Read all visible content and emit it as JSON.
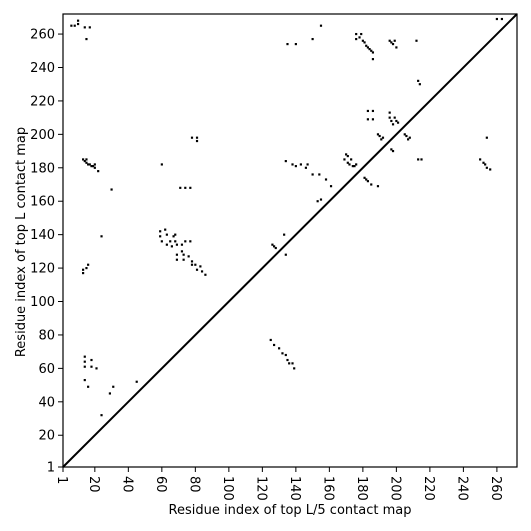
{
  "chart_data": {
    "type": "scatter",
    "xlabel": "Residue index of top L/5 contact map",
    "ylabel": "Residue index of top L contact map",
    "xlim": [
      1,
      272
    ],
    "ylim": [
      1,
      272
    ],
    "x_ticks": [
      1,
      20,
      40,
      60,
      80,
      100,
      120,
      140,
      160,
      180,
      200,
      220,
      240,
      260
    ],
    "y_ticks": [
      1,
      20,
      40,
      60,
      80,
      100,
      120,
      140,
      160,
      180,
      200,
      220,
      240,
      260
    ],
    "x_tick_rotation": "vertical",
    "grid": false,
    "legend": "none",
    "diagonal_line": {
      "from": [
        1,
        1
      ],
      "to": [
        272,
        272
      ],
      "color": "#000000"
    },
    "marker_color": "#000000",
    "series": [
      {
        "role": "upper-left (top L contacts)",
        "points": [
          [
            6,
            265
          ],
          [
            8,
            265
          ],
          [
            10,
            266
          ],
          [
            10,
            268
          ],
          [
            14,
            264
          ],
          [
            15,
            257
          ],
          [
            17,
            264
          ],
          [
            13,
            185
          ],
          [
            14,
            184
          ],
          [
            15,
            185
          ],
          [
            15,
            183
          ],
          [
            16,
            182
          ],
          [
            17,
            182
          ],
          [
            18,
            181
          ],
          [
            19,
            181
          ],
          [
            20,
            180
          ],
          [
            20,
            182
          ],
          [
            22,
            178
          ],
          [
            30,
            167
          ],
          [
            13,
            119
          ],
          [
            13,
            117
          ],
          [
            15,
            120
          ],
          [
            16,
            122
          ],
          [
            24,
            139
          ],
          [
            14,
            67
          ],
          [
            14,
            64
          ],
          [
            14,
            61
          ],
          [
            18,
            65
          ],
          [
            18,
            61
          ],
          [
            21,
            60
          ],
          [
            14,
            53
          ],
          [
            16,
            49
          ],
          [
            24,
            32
          ],
          [
            29,
            45
          ],
          [
            31,
            49
          ],
          [
            45,
            52
          ],
          [
            59,
            142
          ],
          [
            59,
            139
          ],
          [
            60,
            136
          ],
          [
            62,
            143
          ],
          [
            63,
            140
          ],
          [
            63,
            134
          ],
          [
            65,
            136
          ],
          [
            66,
            133
          ],
          [
            67,
            139
          ],
          [
            68,
            140
          ],
          [
            68,
            136
          ],
          [
            69,
            134
          ],
          [
            72,
            134
          ],
          [
            72,
            130
          ],
          [
            69,
            128
          ],
          [
            69,
            125
          ],
          [
            73,
            128
          ],
          [
            73,
            125
          ],
          [
            76,
            127
          ],
          [
            74,
            136
          ],
          [
            77,
            136
          ],
          [
            78,
            124
          ],
          [
            78,
            122
          ],
          [
            80,
            122
          ],
          [
            81,
            119
          ],
          [
            83,
            121
          ],
          [
            84,
            118
          ],
          [
            86,
            116
          ],
          [
            60,
            182
          ],
          [
            71,
            168
          ],
          [
            74,
            168
          ],
          [
            77,
            168
          ],
          [
            78,
            198
          ],
          [
            81,
            198
          ],
          [
            81,
            196
          ],
          [
            126,
            134
          ],
          [
            127,
            133
          ],
          [
            128,
            132
          ],
          [
            125,
            77
          ],
          [
            127,
            74
          ],
          [
            130,
            72
          ],
          [
            132,
            69
          ],
          [
            134,
            68
          ],
          [
            135,
            65
          ],
          [
            136,
            63
          ],
          [
            138,
            63
          ],
          [
            139,
            60
          ],
          [
            133,
            140
          ],
          [
            134,
            128
          ],
          [
            134,
            184
          ],
          [
            138,
            182
          ],
          [
            140,
            181
          ],
          [
            143,
            182
          ],
          [
            146,
            180
          ],
          [
            147,
            182
          ],
          [
            150,
            176
          ],
          [
            154,
            176
          ],
          [
            153,
            160
          ],
          [
            155,
            161
          ],
          [
            158,
            173
          ],
          [
            161,
            169
          ],
          [
            135,
            254
          ],
          [
            140,
            254
          ],
          [
            150,
            257
          ],
          [
            155,
            265
          ],
          [
            169,
            185
          ],
          [
            170,
            188
          ],
          [
            171,
            187
          ],
          [
            171,
            183
          ],
          [
            172,
            182
          ],
          [
            173,
            185
          ],
          [
            174,
            181
          ],
          [
            175,
            181
          ],
          [
            176,
            182
          ],
          [
            176,
            257
          ],
          [
            176,
            260
          ],
          [
            178,
            258
          ],
          [
            179,
            260
          ],
          [
            180,
            256
          ],
          [
            181,
            255
          ],
          [
            182,
            253
          ],
          [
            183,
            252
          ],
          [
            184,
            251
          ],
          [
            185,
            250
          ],
          [
            186,
            249
          ],
          [
            186,
            245
          ],
          [
            181,
            174
          ],
          [
            182,
            173
          ],
          [
            183,
            172
          ],
          [
            185,
            170
          ],
          [
            189,
            169
          ],
          [
            183,
            214
          ],
          [
            183,
            209
          ],
          [
            186,
            214
          ],
          [
            186,
            209
          ],
          [
            189,
            200
          ],
          [
            190,
            199
          ],
          [
            191,
            197
          ],
          [
            192,
            198
          ],
          [
            196,
            213
          ],
          [
            196,
            210
          ],
          [
            197,
            208
          ],
          [
            198,
            206
          ],
          [
            199,
            210
          ],
          [
            200,
            208
          ],
          [
            201,
            207
          ],
          [
            197,
            191
          ],
          [
            198,
            190
          ],
          [
            196,
            256
          ],
          [
            197,
            255
          ],
          [
            198,
            254
          ],
          [
            199,
            256
          ],
          [
            200,
            252
          ],
          [
            205,
            200
          ],
          [
            206,
            199
          ],
          [
            208,
            198
          ],
          [
            207,
            197
          ],
          [
            212,
            256
          ],
          [
            213,
            232
          ],
          [
            214,
            230
          ],
          [
            213,
            185
          ],
          [
            215,
            185
          ],
          [
            250,
            185
          ],
          [
            252,
            183
          ],
          [
            253,
            182
          ],
          [
            254,
            180
          ],
          [
            256,
            179
          ],
          [
            254,
            198
          ],
          [
            260,
            269
          ],
          [
            263,
            269
          ]
        ]
      }
    ]
  }
}
